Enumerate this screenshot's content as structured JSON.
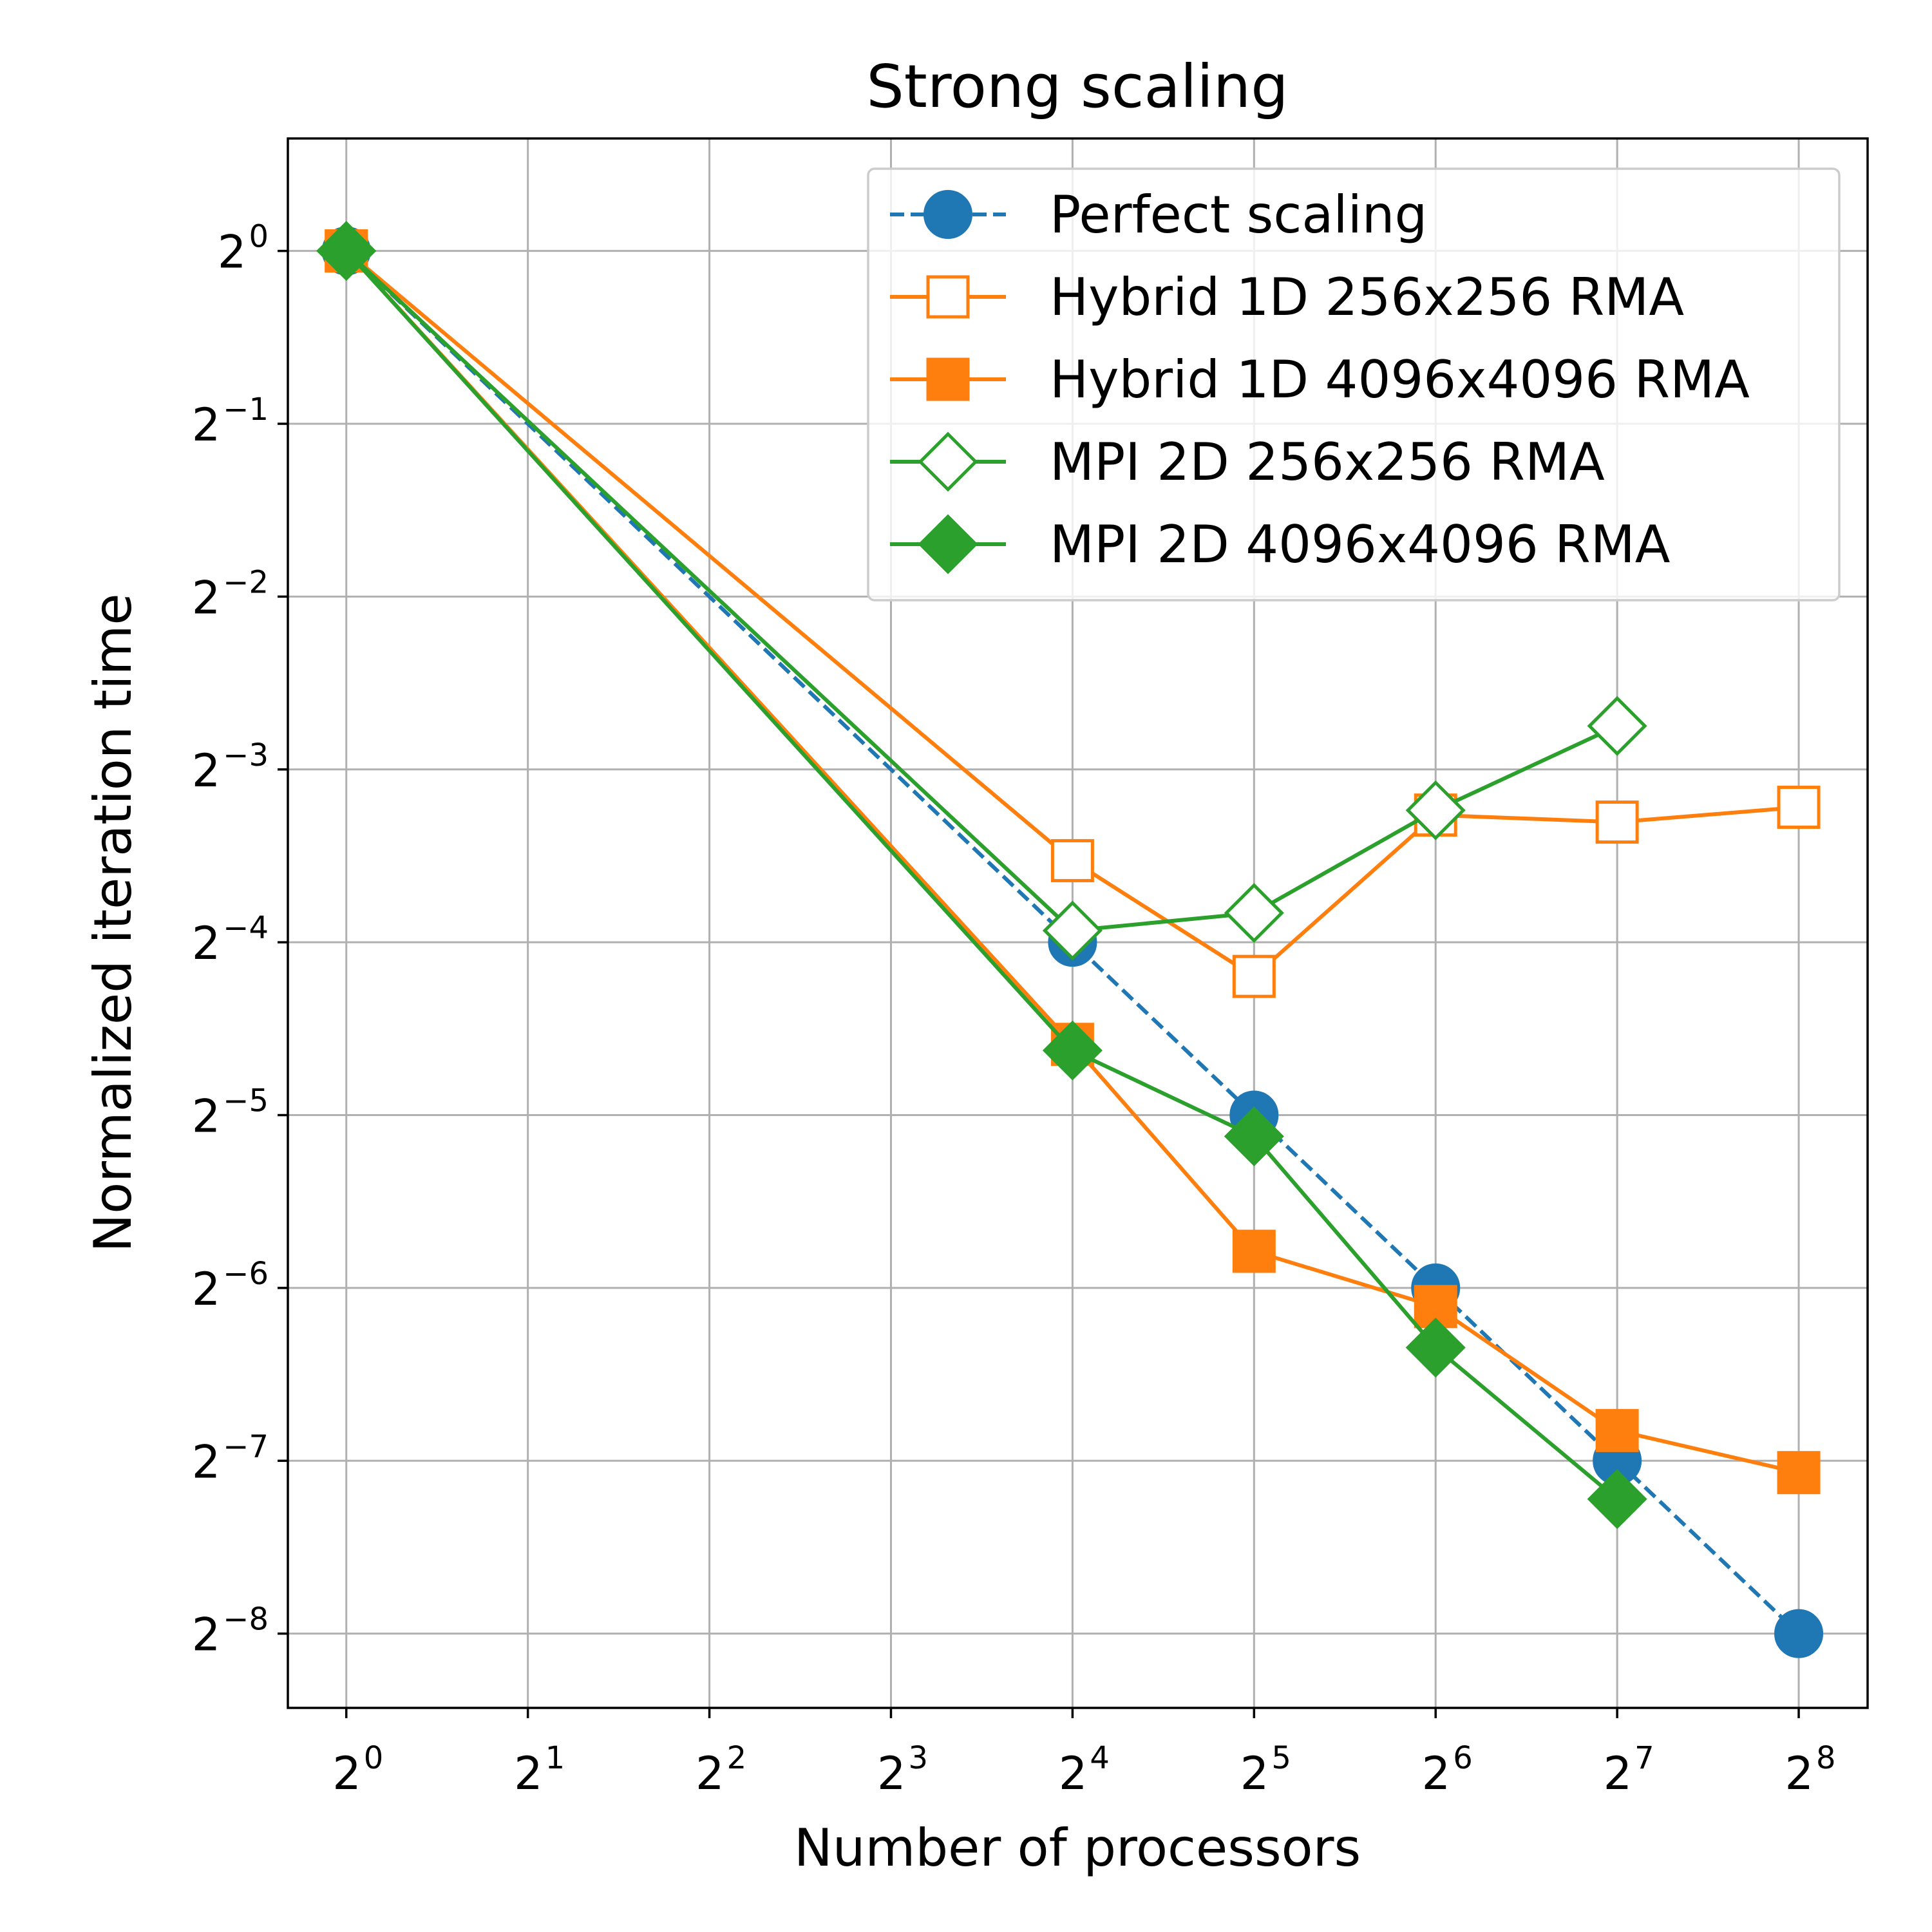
{
  "chart_data": {
    "type": "line",
    "title": "Strong scaling",
    "xlabel": "Number of processors",
    "ylabel": "Normalized iteration time",
    "x_scale": "log2",
    "y_scale": "log2",
    "xlim": [
      0.8,
      333
    ],
    "ylim": [
      0.0029,
      1.57
    ],
    "grid": true,
    "legend_position": "top-right",
    "x_ticks": [
      {
        "value": 1,
        "base": "2",
        "exp": "0"
      },
      {
        "value": 2,
        "base": "2",
        "exp": "1"
      },
      {
        "value": 4,
        "base": "2",
        "exp": "2"
      },
      {
        "value": 8,
        "base": "2",
        "exp": "3"
      },
      {
        "value": 16,
        "base": "2",
        "exp": "4"
      },
      {
        "value": 32,
        "base": "2",
        "exp": "5"
      },
      {
        "value": 64,
        "base": "2",
        "exp": "6"
      },
      {
        "value": 128,
        "base": "2",
        "exp": "7"
      },
      {
        "value": 256,
        "base": "2",
        "exp": "8"
      }
    ],
    "y_ticks": [
      {
        "value": 1,
        "base": "2",
        "exp": "0"
      },
      {
        "value": 0.5,
        "base": "2",
        "exp": "−1"
      },
      {
        "value": 0.25,
        "base": "2",
        "exp": "−2"
      },
      {
        "value": 0.125,
        "base": "2",
        "exp": "−3"
      },
      {
        "value": 0.0625,
        "base": "2",
        "exp": "−4"
      },
      {
        "value": 0.03125,
        "base": "2",
        "exp": "−5"
      },
      {
        "value": 0.015625,
        "base": "2",
        "exp": "−6"
      },
      {
        "value": 0.0078125,
        "base": "2",
        "exp": "−7"
      },
      {
        "value": 0.00390625,
        "base": "2",
        "exp": "−8"
      }
    ],
    "series": [
      {
        "name": "Perfect scaling",
        "color": "#1f77b4",
        "line": "dashed",
        "marker": "circle",
        "filled": true,
        "x": [
          1,
          16,
          32,
          64,
          128,
          256
        ],
        "y": [
          1,
          0.0625,
          0.03125,
          0.015625,
          0.0078125,
          0.00390625
        ]
      },
      {
        "name": "Hybrid 1D 256x256 RMA",
        "color": "#ff7f0e",
        "line": "solid",
        "marker": "square",
        "filled": false,
        "x": [
          1,
          16,
          32,
          64,
          128,
          256
        ],
        "y": [
          1,
          0.0867,
          0.0545,
          0.1041,
          0.1012,
          0.1074
        ]
      },
      {
        "name": "Hybrid 1D 4096x4096 RMA",
        "color": "#ff7f0e",
        "line": "solid",
        "marker": "square",
        "filled": true,
        "x": [
          1,
          16,
          32,
          64,
          128,
          256
        ],
        "y": [
          1,
          0.0415,
          0.0181,
          0.0145,
          0.00882,
          0.00745
        ]
      },
      {
        "name": "MPI 2D 256x256 RMA",
        "color": "#2ca02c",
        "line": "solid",
        "marker": "diamond",
        "filled": false,
        "x": [
          1,
          16,
          32,
          64,
          128
        ],
        "y": [
          1,
          0.0655,
          0.0703,
          0.1061,
          0.1488
        ]
      },
      {
        "name": "MPI 2D 4096x4096 RMA",
        "color": "#2ca02c",
        "line": "solid",
        "marker": "diamond",
        "filled": true,
        "x": [
          1,
          16,
          32,
          64,
          128
        ],
        "y": [
          1,
          0.0405,
          0.0287,
          0.0123,
          0.0067
        ]
      }
    ]
  }
}
